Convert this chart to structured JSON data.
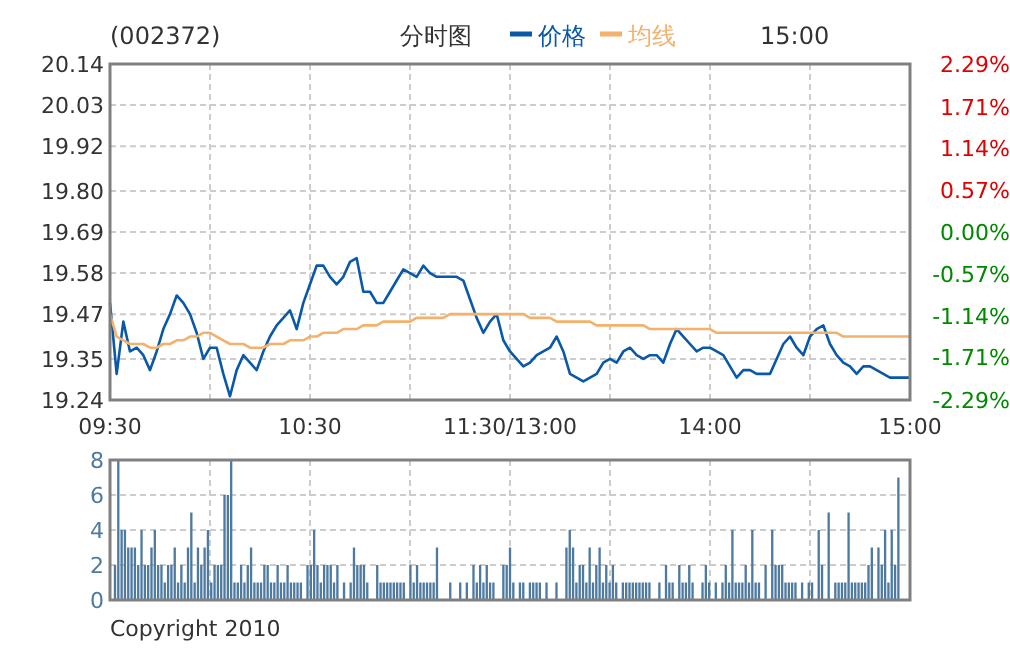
{
  "chart_data": [
    {
      "type": "line",
      "title": "(002372)",
      "subtitle": "分时图",
      "annotations": [
        "15:00"
      ],
      "legend": "top",
      "grid": true,
      "categories": [
        "09:30",
        null,
        null,
        null,
        null,
        null,
        null,
        null,
        null,
        null,
        null,
        null,
        null,
        null,
        null,
        null,
        null,
        null,
        null,
        null,
        null,
        null,
        null,
        null,
        null,
        null,
        null,
        null,
        null,
        null,
        "10:30",
        null,
        null,
        null,
        null,
        null,
        null,
        null,
        null,
        null,
        null,
        null,
        null,
        null,
        null,
        null,
        null,
        null,
        null,
        null,
        null,
        null,
        null,
        null,
        null,
        null,
        null,
        null,
        null,
        null,
        "11:30/13:00",
        null,
        null,
        null,
        null,
        null,
        null,
        null,
        null,
        null,
        null,
        null,
        null,
        null,
        null,
        null,
        null,
        null,
        null,
        null,
        null,
        null,
        null,
        null,
        null,
        null,
        null,
        null,
        null,
        null,
        "14:00",
        null,
        null,
        null,
        null,
        null,
        null,
        null,
        null,
        null,
        null,
        null,
        null,
        null,
        null,
        null,
        null,
        null,
        null,
        null,
        null,
        null,
        null,
        null,
        null,
        null,
        null,
        null,
        null,
        null,
        "15:00"
      ],
      "ylim": [
        19.24,
        20.14
      ],
      "yticks": [
        {
          "value": 19.24,
          "label": "19.24"
        },
        {
          "value": 19.35,
          "label": "19.35"
        },
        {
          "value": 19.47,
          "label": "19.47"
        },
        {
          "value": 19.58,
          "label": "19.58"
        },
        {
          "value": 19.69,
          "label": "19.69"
        },
        {
          "value": 19.8,
          "label": "19.80"
        },
        {
          "value": 19.92,
          "label": "19.92"
        },
        {
          "value": 20.03,
          "label": "20.03"
        },
        {
          "value": 20.14,
          "label": "20.14"
        }
      ],
      "y2lim": [
        -2.29,
        2.29
      ],
      "y2ticks": [
        {
          "value": -2.29,
          "label": "-2.29%"
        },
        {
          "value": -1.71,
          "label": "-1.71%"
        },
        {
          "value": -1.14,
          "label": "-1.14%"
        },
        {
          "value": -0.57,
          "label": "-0.57%"
        },
        {
          "value": 0,
          "label": "0.00%"
        },
        {
          "value": 0.57,
          "label": "0.57%"
        },
        {
          "value": 1.14,
          "label": "1.14%"
        },
        {
          "value": 1.71,
          "label": "1.71%"
        },
        {
          "value": 2.29,
          "label": "2.29%"
        }
      ],
      "series": [
        {
          "name": "价格",
          "color": "#0a58a8",
          "values": [
            19.5,
            19.31,
            19.45,
            19.37,
            19.38,
            19.36,
            19.32,
            19.37,
            19.43,
            19.47,
            19.52,
            19.5,
            19.47,
            19.42,
            19.35,
            19.38,
            19.38,
            19.31,
            19.25,
            19.32,
            19.36,
            19.34,
            19.32,
            19.37,
            19.41,
            19.44,
            19.46,
            19.48,
            19.43,
            19.5,
            19.55,
            19.6,
            19.6,
            19.57,
            19.55,
            19.57,
            19.61,
            19.62,
            19.53,
            19.53,
            19.5,
            19.5,
            19.53,
            19.56,
            19.59,
            19.58,
            19.57,
            19.6,
            19.58,
            19.57,
            19.57,
            19.57,
            19.57,
            19.56,
            19.51,
            19.46,
            19.42,
            19.45,
            19.47,
            19.4,
            19.37,
            19.35,
            19.33,
            19.34,
            19.36,
            19.37,
            19.38,
            19.41,
            19.37,
            19.31,
            19.3,
            19.29,
            19.3,
            19.31,
            19.34,
            19.35,
            19.34,
            19.37,
            19.38,
            19.36,
            19.35,
            19.36,
            19.36,
            19.34,
            19.39,
            19.43,
            19.41,
            19.39,
            19.37,
            19.38,
            19.38,
            19.37,
            19.36,
            19.33,
            19.3,
            19.32,
            19.32,
            19.31,
            19.31,
            19.31,
            19.35,
            19.39,
            19.41,
            19.38,
            19.36,
            19.41,
            19.43,
            19.44,
            19.39,
            19.36,
            19.34,
            19.33,
            19.31,
            19.33,
            19.33,
            19.32,
            19.31,
            19.3,
            19.3,
            19.3,
            19.3
          ]
        },
        {
          "name": "均线",
          "color": "#f4b16b",
          "values": [
            19.47,
            19.41,
            19.4,
            19.39,
            19.39,
            19.39,
            19.38,
            19.38,
            19.39,
            19.39,
            19.4,
            19.4,
            19.41,
            19.41,
            19.42,
            19.42,
            19.41,
            19.4,
            19.39,
            19.39,
            19.39,
            19.38,
            19.38,
            19.38,
            19.39,
            19.39,
            19.39,
            19.4,
            19.4,
            19.4,
            19.41,
            19.41,
            19.42,
            19.42,
            19.42,
            19.43,
            19.43,
            19.43,
            19.44,
            19.44,
            19.44,
            19.45,
            19.45,
            19.45,
            19.45,
            19.45,
            19.46,
            19.46,
            19.46,
            19.46,
            19.46,
            19.47,
            19.47,
            19.47,
            19.47,
            19.47,
            19.47,
            19.47,
            19.47,
            19.47,
            19.47,
            19.47,
            19.47,
            19.46,
            19.46,
            19.46,
            19.46,
            19.45,
            19.45,
            19.45,
            19.45,
            19.45,
            19.45,
            19.44,
            19.44,
            19.44,
            19.44,
            19.44,
            19.44,
            19.44,
            19.44,
            19.43,
            19.43,
            19.43,
            19.43,
            19.43,
            19.43,
            19.43,
            19.43,
            19.43,
            19.43,
            19.42,
            19.42,
            19.42,
            19.42,
            19.42,
            19.42,
            19.42,
            19.42,
            19.42,
            19.42,
            19.42,
            19.42,
            19.42,
            19.42,
            19.42,
            19.42,
            19.42,
            19.42,
            19.42,
            19.41,
            19.41,
            19.41,
            19.41,
            19.41,
            19.41,
            19.41,
            19.41,
            19.41,
            19.41,
            19.41
          ]
        }
      ]
    },
    {
      "type": "bar",
      "color": "#4f7aa0",
      "grid": true,
      "annotations": [
        "Copyright 2010"
      ],
      "categories": [
        null,
        null,
        null,
        null,
        null,
        null,
        null,
        null,
        null,
        null,
        null,
        null,
        null,
        null,
        null,
        null,
        null,
        null,
        null,
        null,
        null,
        null,
        null,
        null,
        null,
        null,
        null,
        null,
        null,
        null,
        null,
        null,
        null,
        null,
        null,
        null,
        null,
        null,
        null,
        null,
        null,
        null,
        null,
        null,
        null,
        null,
        null,
        null,
        null,
        null,
        null,
        null,
        null,
        null,
        null,
        null,
        null,
        null,
        null,
        null,
        null,
        null,
        null,
        null,
        null,
        null,
        null,
        null,
        null,
        null,
        null,
        null,
        null,
        null,
        null,
        null,
        null,
        null,
        null,
        null,
        null,
        null,
        null,
        null,
        null,
        null,
        null,
        null,
        null,
        null,
        null,
        null,
        null,
        null,
        null,
        null,
        null,
        null,
        null,
        null,
        null,
        null,
        null,
        null,
        null,
        null,
        null,
        null,
        null,
        null,
        null,
        null,
        null,
        null,
        null,
        null,
        null,
        null,
        null,
        null,
        null,
        null,
        null,
        null,
        null,
        null,
        null,
        null,
        null,
        null,
        null,
        null,
        null,
        null,
        null,
        null,
        null,
        null,
        null,
        null,
        null,
        null,
        null,
        null,
        null,
        null,
        null,
        null,
        null,
        null,
        null,
        null,
        null,
        null,
        null,
        null,
        null,
        null,
        null,
        null,
        null,
        null,
        null,
        null,
        null,
        null,
        null,
        null,
        null,
        null,
        null,
        null,
        null,
        null,
        null,
        null,
        null,
        null,
        null,
        null,
        null,
        null,
        null,
        null,
        null,
        null,
        null,
        null,
        null,
        null,
        null,
        null,
        null,
        null,
        null,
        null,
        null,
        null,
        null,
        null,
        null,
        null,
        null,
        null,
        null,
        null,
        null,
        null,
        null,
        null,
        null,
        null,
        null,
        null,
        null,
        null,
        null,
        null,
        null,
        null,
        null,
        null,
        null,
        null,
        null,
        null,
        null,
        null,
        null,
        null,
        null,
        null,
        null,
        null,
        null,
        null,
        null,
        null,
        null,
        null,
        null
      ],
      "ylim": [
        0,
        8
      ],
      "yticks": [
        0,
        2,
        4,
        6,
        8
      ],
      "values": [
        null,
        2,
        8,
        4,
        4,
        3,
        3,
        3,
        2,
        4,
        2,
        2,
        3,
        4,
        2,
        2,
        1,
        2,
        2,
        3,
        1,
        2,
        1,
        3,
        5,
        1,
        3,
        2,
        3,
        4,
        1,
        2,
        2,
        2,
        6,
        6,
        8,
        1,
        1,
        2,
        1,
        2,
        3,
        1,
        1,
        1,
        2,
        2,
        1,
        1,
        2,
        1,
        1,
        2,
        1,
        1,
        1,
        1,
        null,
        2,
        2,
        4,
        2,
        1,
        2,
        2,
        2,
        1,
        2,
        null,
        1,
        null,
        1,
        3,
        2,
        2,
        2,
        1,
        null,
        null,
        2,
        1,
        1,
        1,
        1,
        1,
        1,
        1,
        1,
        null,
        2,
        1,
        2,
        1,
        1,
        1,
        1,
        1,
        3,
        null,
        null,
        null,
        1,
        null,
        null,
        1,
        null,
        1,
        null,
        2,
        1,
        2,
        1,
        2,
        1,
        1,
        null,
        null,
        2,
        2,
        3,
        1,
        null,
        1,
        1,
        null,
        1,
        1,
        1,
        1,
        null,
        1,
        null,
        null,
        1,
        null,
        null,
        3,
        4,
        3,
        1,
        2,
        2,
        1,
        3,
        1,
        2,
        3,
        1,
        2,
        1,
        2,
        1,
        null,
        1,
        1,
        1,
        1,
        1,
        1,
        1,
        1,
        1,
        null,
        null,
        1,
        null,
        2,
        1,
        1,
        null,
        2,
        1,
        1,
        2,
        1,
        null,
        null,
        1,
        2,
        1,
        null,
        1,
        null,
        1,
        2,
        1,
        4,
        1,
        1,
        1,
        2,
        1,
        4,
        1,
        1,
        null,
        2,
        null,
        4,
        2,
        2,
        2,
        1,
        1,
        1,
        1,
        null,
        1,
        null,
        1,
        1,
        null,
        4,
        2,
        null,
        5,
        null,
        1,
        1,
        1,
        1,
        5,
        1,
        1,
        1,
        1,
        1,
        2,
        3,
        null,
        3,
        2,
        4,
        1,
        4,
        2,
        7,
        null,
        null,
        null
      ]
    }
  ]
}
